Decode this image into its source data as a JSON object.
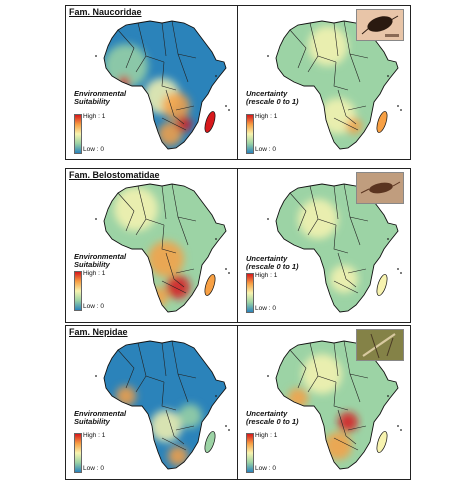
{
  "rows": [
    {
      "family": "Fam. Naucoridae",
      "left_legend": [
        "Environmental",
        "Suitability"
      ],
      "right_legend": [
        "Uncertainty",
        "(rescale 0 to 1)"
      ],
      "high": "High : 1",
      "low": "Low : 0"
    },
    {
      "family": "Fam. Belostomatidae",
      "left_legend": [
        "Environmental",
        "Suitability"
      ],
      "right_legend": [
        "Uncertainty",
        "(rescale 0 to 1)"
      ],
      "high": "High : 1",
      "low": "Low : 0"
    },
    {
      "family": "Fam. Nepidae",
      "left_legend": [
        "Environmental",
        "Suitability"
      ],
      "right_legend": [
        "Uncertainty",
        "(rescale 0 to 1)"
      ],
      "high": "High : 1",
      "low": "Low : 0"
    }
  ],
  "colors": {
    "high": "#d7191c",
    "mid_high": "#f7a044",
    "mid": "#f7f3b0",
    "mid_low": "#9cd3a5",
    "low": "#2b83ba"
  }
}
